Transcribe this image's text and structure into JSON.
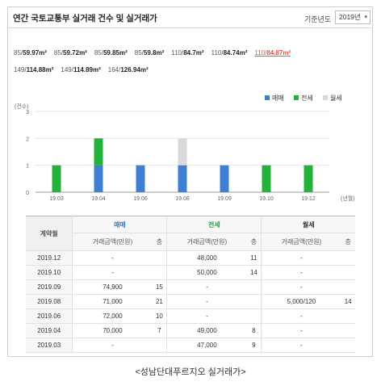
{
  "header": {
    "title": "연간 국토교통부 실거래 건수 및 실거래가",
    "year_label": "기준년도",
    "year_value": "2019년"
  },
  "sizes": [
    {
      "prefix": "85/",
      "area": "59.97m²",
      "active": false
    },
    {
      "prefix": "85/",
      "area": "59.72m²",
      "active": false
    },
    {
      "prefix": "85/",
      "area": "59.85m²",
      "active": false
    },
    {
      "prefix": "85/",
      "area": "59.8m²",
      "active": false
    },
    {
      "prefix": "110/",
      "area": "84.7m²",
      "active": false
    },
    {
      "prefix": "110/",
      "area": "84.74m²",
      "active": false
    },
    {
      "prefix": "110/",
      "area": "84.87m²",
      "active": true
    },
    {
      "prefix": "149/",
      "area": "114.88m²",
      "active": false
    },
    {
      "prefix": "149/",
      "area": "114.89m²",
      "active": false
    },
    {
      "prefix": "164/",
      "area": "126.94m²",
      "active": false
    }
  ],
  "colors": {
    "sale": "#3e7fd6",
    "jeonse": "#22b43a",
    "monthly": "#d9d9d9",
    "active_size": "#e8534b"
  },
  "chart_data": {
    "type": "bar",
    "stacked": true,
    "ylabel": "(건수)",
    "xlabel": "(년월)",
    "ylim": [
      0,
      3
    ],
    "yticks": [
      0,
      1,
      2,
      3
    ],
    "categories": [
      "19.03",
      "19.04",
      "19.06",
      "19.08",
      "19.09",
      "19.10",
      "19.12"
    ],
    "series": [
      {
        "name": "매매",
        "values": [
          0,
          1,
          1,
          1,
          1,
          0,
          0
        ]
      },
      {
        "name": "전세",
        "values": [
          1,
          1,
          0,
          0,
          0,
          1,
          1
        ]
      },
      {
        "name": "월세",
        "values": [
          0,
          0,
          0,
          1,
          0,
          0,
          0
        ]
      }
    ],
    "legend": "top-right",
    "grid": true
  },
  "table": {
    "row_header": "계약월",
    "groups": [
      "매매",
      "전세",
      "월세"
    ],
    "subheaders": [
      "거래금액(만원)",
      "층"
    ],
    "rows": [
      {
        "month": "2019.12",
        "sale_price": "-",
        "sale_floor": "",
        "jeonse_price": "48,000",
        "jeonse_floor": "11",
        "monthly_price": "-",
        "monthly_floor": ""
      },
      {
        "month": "2019.10",
        "sale_price": "-",
        "sale_floor": "",
        "jeonse_price": "50,000",
        "jeonse_floor": "14",
        "monthly_price": "-",
        "monthly_floor": ""
      },
      {
        "month": "2019.09",
        "sale_price": "74,900",
        "sale_floor": "15",
        "jeonse_price": "-",
        "jeonse_floor": "",
        "monthly_price": "-",
        "monthly_floor": ""
      },
      {
        "month": "2019.08",
        "sale_price": "71,000",
        "sale_floor": "21",
        "jeonse_price": "-",
        "jeonse_floor": "",
        "monthly_price": "5,000/120",
        "monthly_floor": "14"
      },
      {
        "month": "2019.06",
        "sale_price": "72,000",
        "sale_floor": "10",
        "jeonse_price": "-",
        "jeonse_floor": "",
        "monthly_price": "-",
        "monthly_floor": ""
      },
      {
        "month": "2019.04",
        "sale_price": "70,000",
        "sale_floor": "7",
        "jeonse_price": "49,000",
        "jeonse_floor": "8",
        "monthly_price": "-",
        "monthly_floor": ""
      },
      {
        "month": "2019.03",
        "sale_price": "-",
        "sale_floor": "",
        "jeonse_price": "47,000",
        "jeonse_floor": "9",
        "monthly_price": "-",
        "monthly_floor": ""
      }
    ]
  },
  "caption": "<성남단대푸르지오 실거래가>"
}
